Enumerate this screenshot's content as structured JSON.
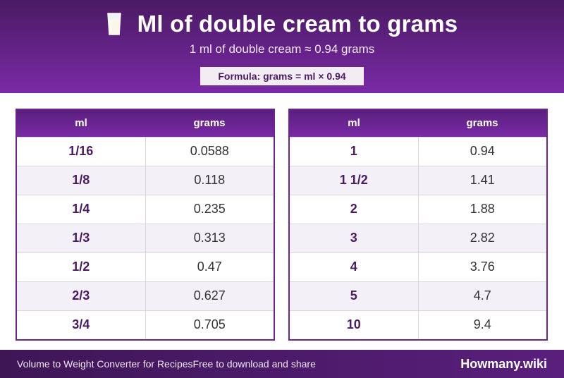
{
  "header": {
    "title": "Ml of double cream to grams",
    "subtitle": "1 ml of double cream ≈ 0.94 grams",
    "formula": "Formula: grams = ml × 0.94",
    "icon": "milk-glass-icon"
  },
  "tables": {
    "left": {
      "col_ml": "ml",
      "col_grams": "grams",
      "rows": [
        {
          "ml": "1/16",
          "grams": "0.0588"
        },
        {
          "ml": "1/8",
          "grams": "0.118"
        },
        {
          "ml": "1/4",
          "grams": "0.235"
        },
        {
          "ml": "1/3",
          "grams": "0.313"
        },
        {
          "ml": "1/2",
          "grams": "0.47"
        },
        {
          "ml": "2/3",
          "grams": "0.627"
        },
        {
          "ml": "3/4",
          "grams": "0.705"
        }
      ]
    },
    "right": {
      "col_ml": "ml",
      "col_grams": "grams",
      "rows": [
        {
          "ml": "1",
          "grams": "0.94"
        },
        {
          "ml": "1 1/2",
          "grams": "1.41"
        },
        {
          "ml": "2",
          "grams": "1.88"
        },
        {
          "ml": "3",
          "grams": "2.82"
        },
        {
          "ml": "4",
          "grams": "3.76"
        },
        {
          "ml": "5",
          "grams": "4.7"
        },
        {
          "ml": "10",
          "grams": "9.4"
        }
      ]
    }
  },
  "footer": {
    "tagline_a": "Volume to Weight Converter for Recipes",
    "tagline_b": "Free to download and share",
    "brand": "Howmany.wiki"
  },
  "colors": {
    "primary_dark": "#4a1a63",
    "primary": "#7a2aa6",
    "row_alt": "#f4f0f7"
  }
}
